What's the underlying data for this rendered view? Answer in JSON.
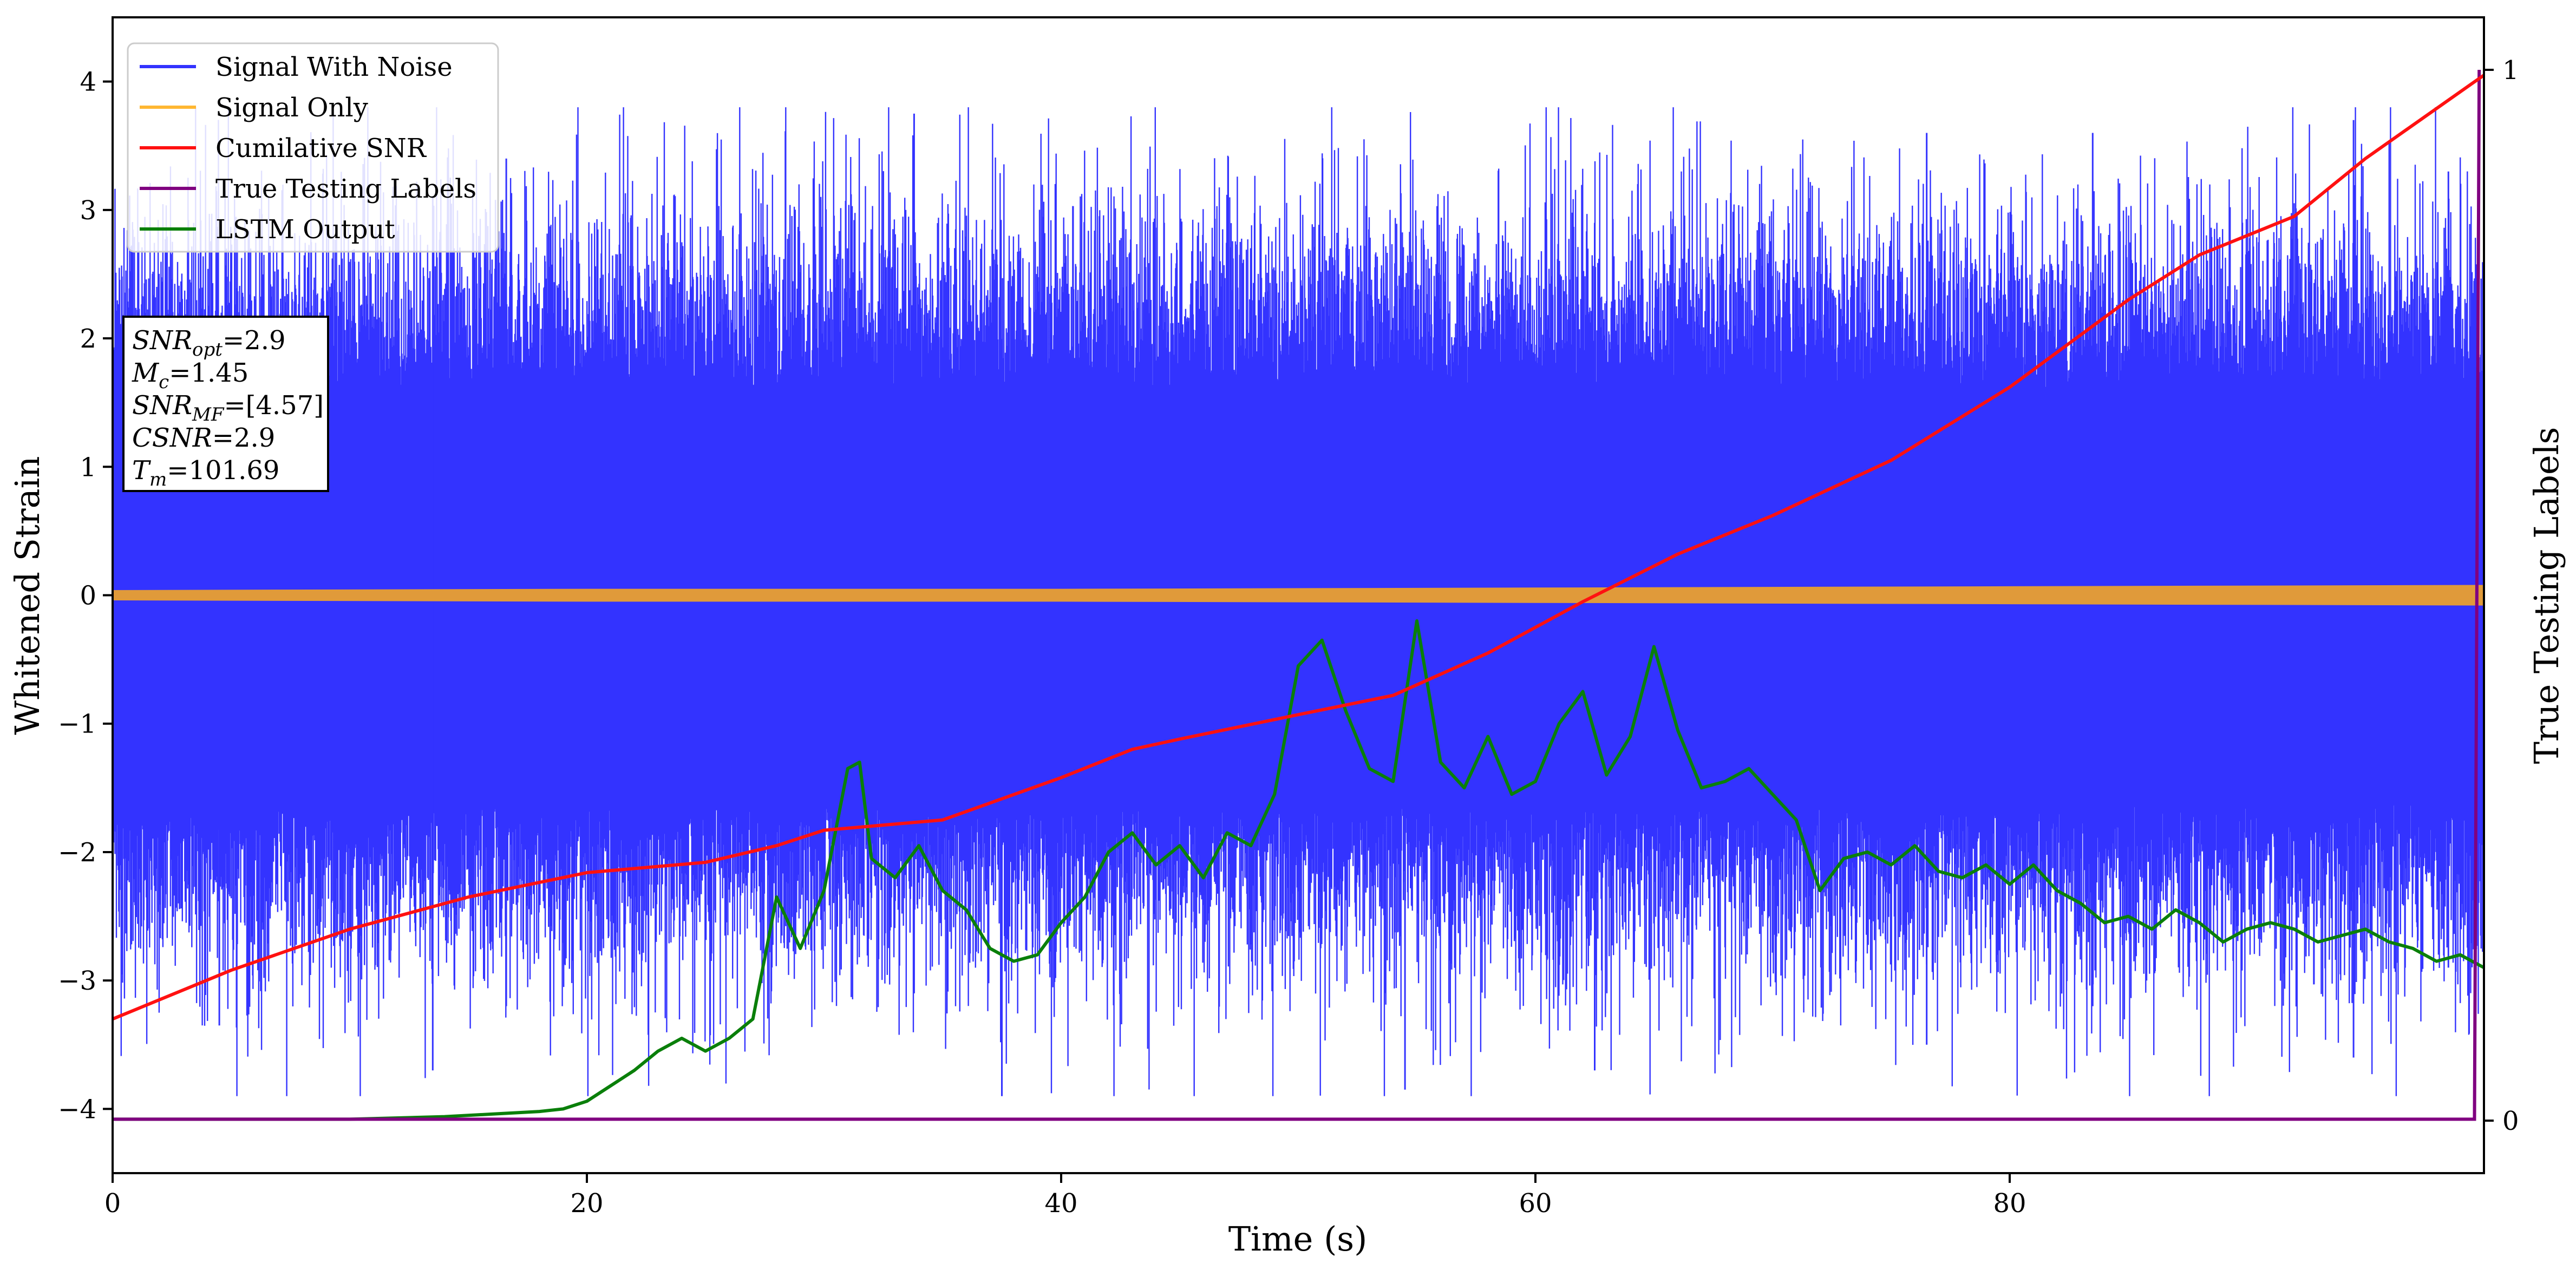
{
  "chart_data": {
    "type": "line",
    "title": "",
    "xlabel": "Time (s)",
    "ylabel": "Whitened Strain",
    "ylabel_right": "True Testing Labels",
    "xlim": [
      0,
      100
    ],
    "ylim": [
      -4.5,
      4.5
    ],
    "ylim_right": [
      -0.05,
      1.05
    ],
    "x_ticks": [
      "0",
      "20",
      "40",
      "60",
      "80"
    ],
    "y_ticks": [
      "4",
      "3",
      "2",
      "1",
      "0",
      "−1",
      "−2",
      "−3",
      "−4"
    ],
    "y_ticks_right": [
      "1",
      "0"
    ],
    "legend_position": "upper-left",
    "legend": [
      {
        "label": "Signal With Noise",
        "color": "#3333ff"
      },
      {
        "label": "Signal Only",
        "color": "#ffb732"
      },
      {
        "label": "Cumilative SNR",
        "color": "#ff1111"
      },
      {
        "label": "True Testing Labels",
        "color": "#800080"
      },
      {
        "label": "LSTM Output",
        "color": "#0a7f0a"
      }
    ],
    "annotation": {
      "snr_opt": {
        "sym": "SNR",
        "sub": "opt",
        "val": "=2.9"
      },
      "mc": {
        "sym": "M",
        "sub": "c",
        "val": "=1.45"
      },
      "snr_mf": {
        "sym": "SNR",
        "sub": "MF",
        "val": "=[4.57]"
      },
      "csnr": {
        "sym": "CSNR",
        "val": "=2.9"
      },
      "tm": {
        "sym": "T",
        "sub": "m",
        "val": "=101.69"
      }
    },
    "series": [
      {
        "name": "Signal With Noise",
        "color": "#3333ff",
        "style": "dense-noise",
        "x_range": [
          0,
          100
        ],
        "bulk_range": [
          -1.5,
          1.5
        ],
        "extremes_range": [
          -3.9,
          3.8
        ]
      },
      {
        "name": "Signal Only",
        "color": "#e09a3a",
        "style": "thin-band",
        "x": [
          0,
          20,
          40,
          60,
          80,
          100
        ],
        "half_width": [
          0.04,
          0.05,
          0.05,
          0.06,
          0.07,
          0.08
        ]
      },
      {
        "name": "Cumilative SNR",
        "color": "#ff1111",
        "x": [
          0,
          5,
          10,
          15,
          20,
          25,
          28,
          30,
          35,
          40,
          43,
          45,
          50,
          54,
          58,
          62,
          66,
          70,
          75,
          80,
          85,
          88,
          90,
          92,
          95,
          100
        ],
        "y": [
          -3.3,
          -2.92,
          -2.6,
          -2.35,
          -2.16,
          -2.08,
          -1.95,
          -1.83,
          -1.75,
          -1.42,
          -1.2,
          -1.12,
          -0.93,
          -0.78,
          -0.45,
          -0.05,
          0.32,
          0.62,
          1.05,
          1.62,
          2.3,
          2.65,
          2.8,
          2.95,
          3.4,
          4.05
        ]
      },
      {
        "name": "True Testing Labels",
        "color": "#800080",
        "x": [
          0,
          99.6,
          99.8
        ],
        "y": [
          -4.08,
          -4.08,
          1.0
        ]
      },
      {
        "name": "LSTM Output",
        "color": "#0a7f0a",
        "x": [
          0,
          10,
          14,
          16,
          18,
          19,
          20,
          21,
          22,
          23,
          24,
          25,
          26,
          27,
          28,
          29,
          30,
          31,
          31.5,
          32,
          33,
          34,
          35,
          36,
          37,
          38,
          39,
          40,
          41,
          42,
          43,
          44,
          45,
          46,
          47,
          48,
          49,
          50,
          51,
          52,
          53,
          54,
          55,
          56,
          57,
          58,
          59,
          60,
          61,
          62,
          63,
          64,
          65,
          66,
          67,
          68,
          69,
          70,
          71,
          72,
          73,
          74,
          75,
          76,
          77,
          78,
          79,
          80,
          81,
          82,
          83,
          84,
          85,
          86,
          87,
          88,
          89,
          90,
          91,
          92,
          93,
          94,
          95,
          96,
          97,
          98,
          99,
          100
        ],
        "y": [
          -4.08,
          -4.08,
          -4.06,
          -4.04,
          -4.02,
          -4.0,
          -3.94,
          -3.82,
          -3.7,
          -3.55,
          -3.45,
          -3.55,
          -3.45,
          -3.3,
          -2.35,
          -2.75,
          -2.3,
          -1.35,
          -1.3,
          -2.05,
          -2.2,
          -1.95,
          -2.3,
          -2.45,
          -2.75,
          -2.85,
          -2.8,
          -2.55,
          -2.35,
          -2.0,
          -1.85,
          -2.1,
          -1.95,
          -2.2,
          -1.85,
          -1.95,
          -1.55,
          -0.55,
          -0.35,
          -0.9,
          -1.35,
          -1.45,
          -0.2,
          -1.3,
          -1.5,
          -1.1,
          -1.55,
          -1.45,
          -1.0,
          -0.75,
          -1.4,
          -1.1,
          -0.4,
          -1.05,
          -1.5,
          -1.45,
          -1.35,
          -1.55,
          -1.75,
          -2.3,
          -2.05,
          -2.0,
          -2.1,
          -1.95,
          -2.15,
          -2.2,
          -2.1,
          -2.25,
          -2.1,
          -2.3,
          -2.4,
          -2.55,
          -2.5,
          -2.6,
          -2.45,
          -2.55,
          -2.7,
          -2.6,
          -2.55,
          -2.6,
          -2.7,
          -2.65,
          -2.6,
          -2.7,
          -2.75,
          -2.85,
          -2.8,
          -2.9
        ]
      }
    ]
  }
}
